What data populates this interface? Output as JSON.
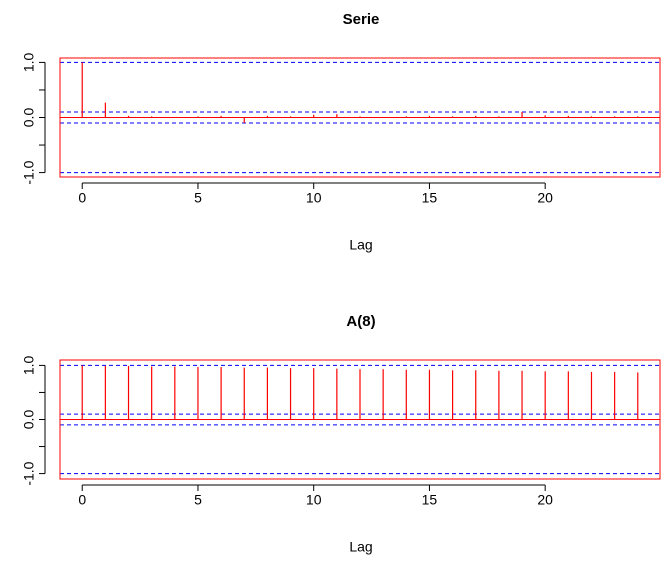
{
  "chart_data": [
    {
      "type": "stem",
      "title": "Serie",
      "x_label": "Lag",
      "x": [
        0,
        1,
        2,
        3,
        4,
        5,
        6,
        7,
        8,
        9,
        10,
        11,
        12,
        13,
        14,
        15,
        16,
        17,
        18,
        19,
        20,
        21,
        22,
        23,
        24
      ],
      "values": [
        1.0,
        0.27,
        0.03,
        0.02,
        0.01,
        0.02,
        0.03,
        -0.1,
        0.03,
        0.02,
        0.05,
        0.06,
        0.02,
        0.01,
        0.02,
        0.03,
        0.02,
        0.03,
        0.02,
        0.1,
        0.04,
        0.03,
        0.02,
        0.02,
        0.02
      ],
      "color": "#ff0000",
      "xlim": [
        -0.96,
        24.96
      ],
      "ylim": [
        -1.08,
        1.08
      ],
      "xticks": [
        0,
        5,
        10,
        15,
        20
      ],
      "yticks": [
        {
          "value": -1,
          "label": "-1.0"
        },
        {
          "value": -0.5,
          "label": null
        },
        {
          "value": 0,
          "label": "0.0"
        },
        {
          "value": 0.5,
          "label": null
        },
        {
          "value": 1,
          "label": "1.0"
        }
      ],
      "hlines": [
        -1,
        -0.1,
        0.1,
        1
      ],
      "hline_color": "#0000ff"
    },
    {
      "type": "stem",
      "title": "A(8)",
      "x_label": "Lag",
      "x": [
        0,
        1,
        2,
        3,
        4,
        5,
        6,
        7,
        8,
        9,
        10,
        11,
        12,
        13,
        14,
        15,
        16,
        17,
        18,
        19,
        20,
        21,
        22,
        23,
        24
      ],
      "values": [
        1.0,
        0.99,
        0.99,
        0.98,
        0.98,
        0.97,
        0.97,
        0.96,
        0.96,
        0.95,
        0.95,
        0.94,
        0.93,
        0.93,
        0.92,
        0.92,
        0.91,
        0.91,
        0.9,
        0.9,
        0.89,
        0.89,
        0.88,
        0.88,
        0.87
      ],
      "color": "#ff0000",
      "xlim": [
        -0.96,
        24.96
      ],
      "ylim": [
        -1.1,
        1.1
      ],
      "xticks": [
        0,
        5,
        10,
        15,
        20
      ],
      "yticks": [
        {
          "value": -1,
          "label": "-1.0"
        },
        {
          "value": -0.5,
          "label": null
        },
        {
          "value": 0,
          "label": "0.0"
        },
        {
          "value": 0.5,
          "label": null
        },
        {
          "value": 1,
          "label": "1.0"
        }
      ],
      "hlines": [
        -1,
        -0.1,
        0.1,
        1
      ],
      "hline_color": "#0000ff"
    }
  ]
}
